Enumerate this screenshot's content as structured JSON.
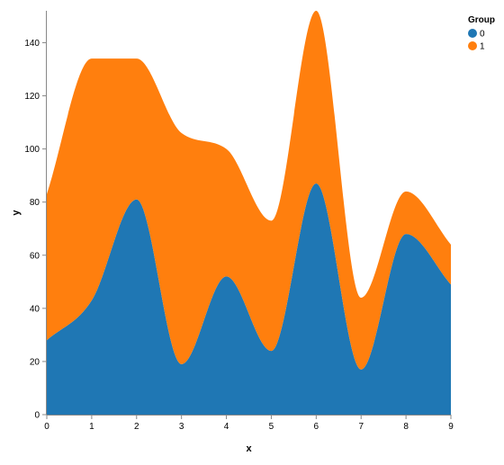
{
  "chart_data": {
    "type": "area",
    "stacked": true,
    "interpolation": "monotone",
    "x": [
      0,
      1,
      2,
      3,
      4,
      5,
      6,
      7,
      8,
      9
    ],
    "series": [
      {
        "name": "0",
        "color": "#1f77b4",
        "values": [
          28,
          43,
          81,
          19,
          52,
          24,
          87,
          17,
          68,
          49
        ]
      },
      {
        "name": "1",
        "color": "#ff7f0e",
        "values": [
          55,
          91,
          53,
          87,
          48,
          49,
          65,
          27,
          16,
          15
        ]
      }
    ],
    "xlabel": "x",
    "ylabel": "y",
    "xlim": [
      0,
      9
    ],
    "ylim": [
      0,
      152
    ],
    "xticks": [
      "0",
      "1",
      "2",
      "3",
      "4",
      "5",
      "6",
      "7",
      "8",
      "9"
    ],
    "yticks": [
      "0",
      "20",
      "40",
      "60",
      "80",
      "100",
      "120",
      "140"
    ],
    "legend": {
      "title": "Group",
      "position": "top-right"
    },
    "grid": false
  }
}
